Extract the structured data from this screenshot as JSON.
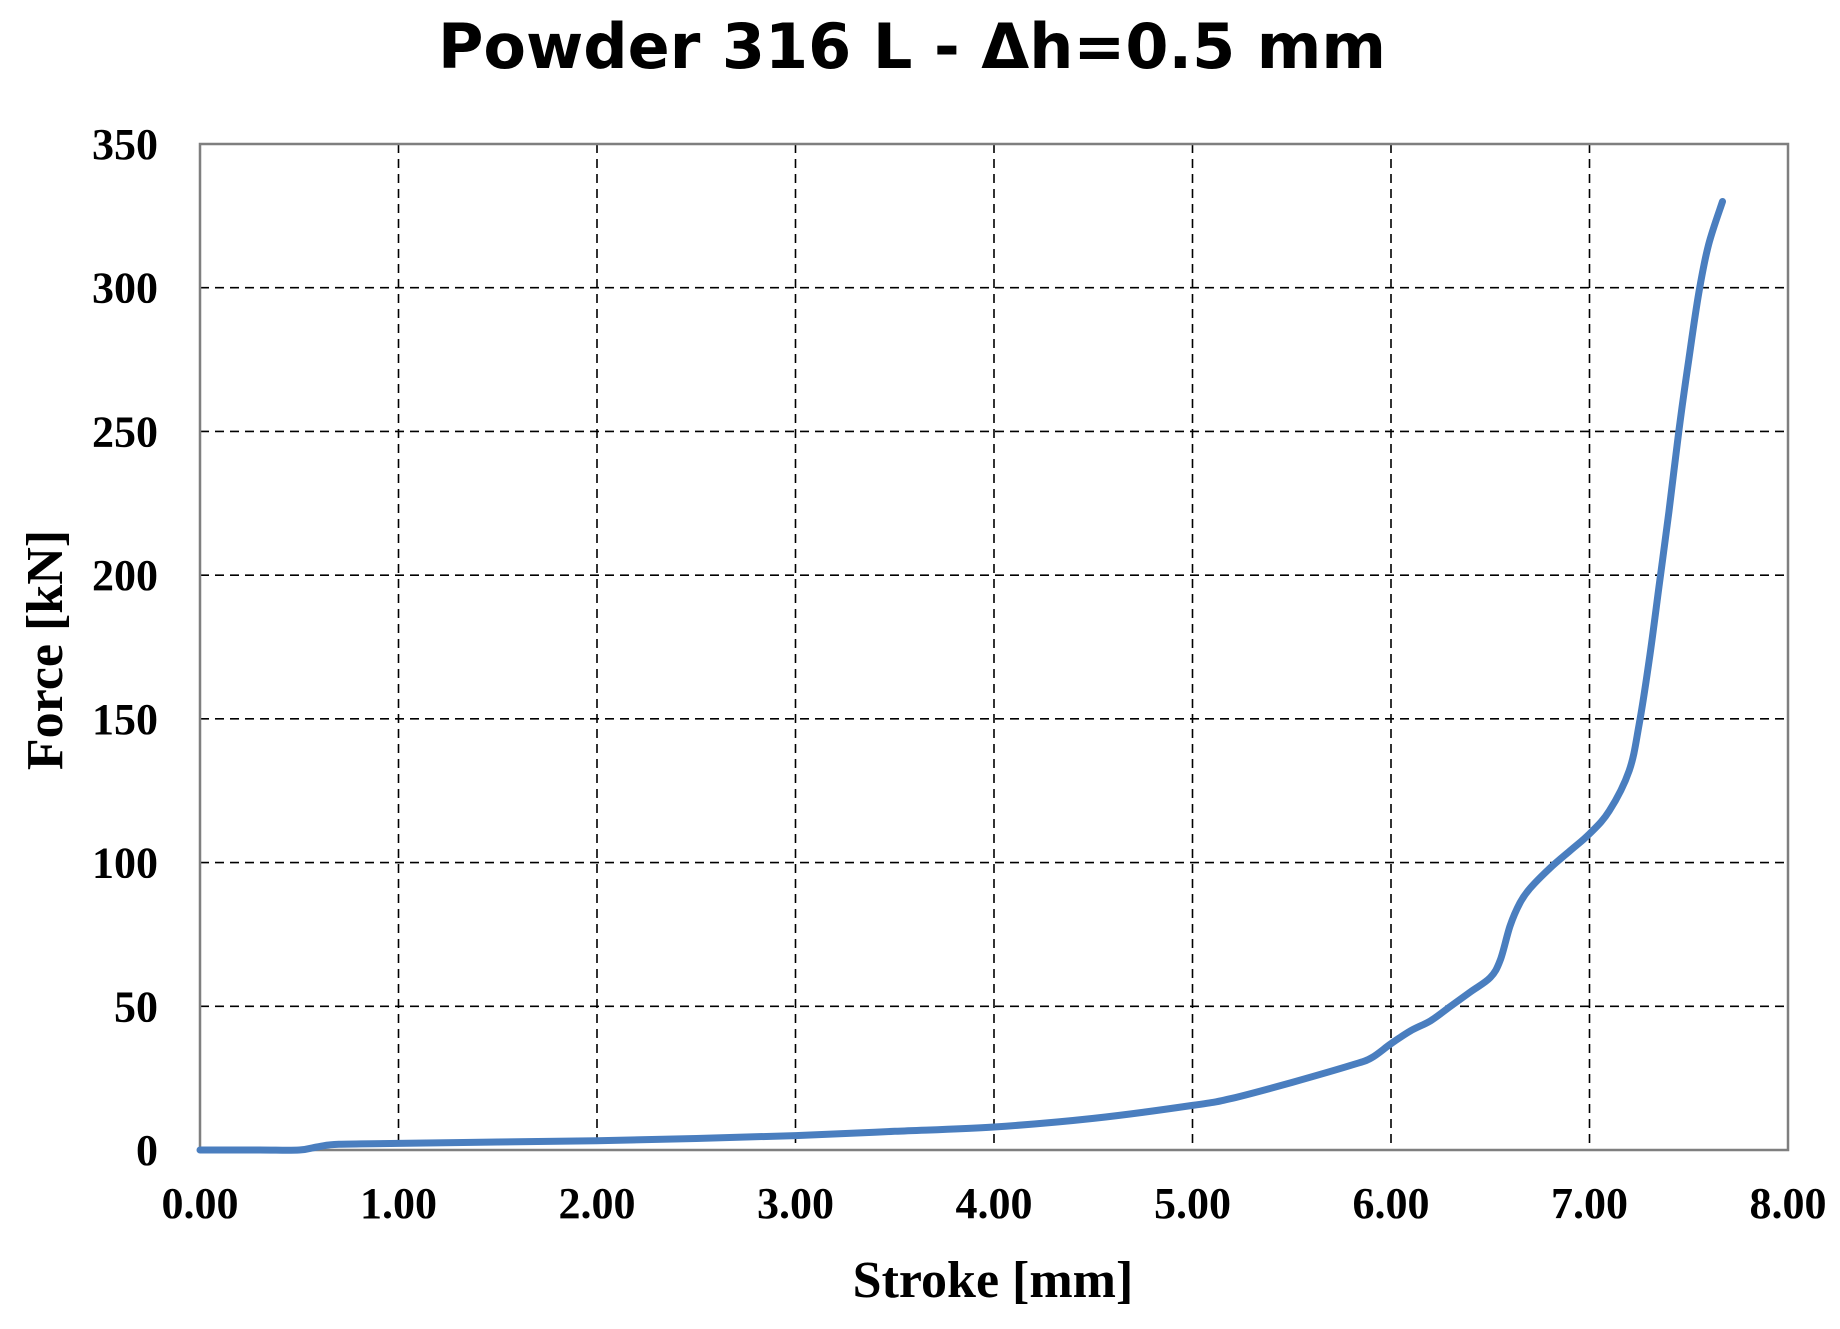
{
  "chart_data": {
    "type": "line",
    "title": "Powder 316 L - Δh=0.5 mm",
    "xlabel": "Stroke [mm]",
    "ylabel": "Force [kN]",
    "xlim": [
      0,
      8
    ],
    "ylim": [
      0,
      350
    ],
    "x_ticks": [
      "0.00",
      "1.00",
      "2.00",
      "3.00",
      "4.00",
      "5.00",
      "6.00",
      "7.00",
      "8.00"
    ],
    "y_ticks": [
      "0",
      "50",
      "100",
      "150",
      "200",
      "250",
      "300",
      "350"
    ],
    "grid": true,
    "legend": "none",
    "series_color": "#4a7ebf",
    "series": [
      {
        "x": [
          0.0,
          0.3,
          0.5,
          0.6,
          0.7,
          1.0,
          1.5,
          2.0,
          2.5,
          3.0,
          3.5,
          4.0,
          4.5,
          5.0,
          5.2,
          5.5,
          5.8,
          5.9,
          6.0,
          6.1,
          6.2,
          6.3,
          6.4,
          6.5,
          6.55,
          6.6,
          6.65,
          6.7,
          6.8,
          6.9,
          7.0,
          7.1,
          7.2,
          7.25,
          7.3,
          7.35,
          7.4,
          7.45,
          7.5,
          7.55,
          7.6,
          7.67
        ],
        "y": [
          0,
          0,
          0,
          1.2,
          2,
          2.3,
          2.8,
          3.2,
          4,
          5,
          6.5,
          8,
          11,
          15.5,
          18,
          23.5,
          29.5,
          32,
          37,
          41.5,
          45,
          50,
          55,
          60,
          66,
          78,
          86,
          91,
          98,
          104,
          110,
          118,
          132,
          148,
          170,
          196,
          222,
          250,
          275,
          298,
          315,
          330
        ]
      }
    ]
  }
}
